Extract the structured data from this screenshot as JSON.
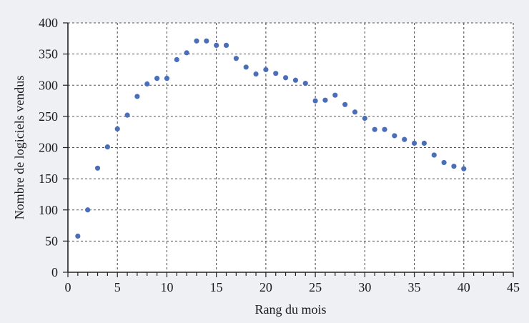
{
  "chart_data": {
    "type": "scatter",
    "title": "",
    "xlabel": "Rang du mois",
    "ylabel": "Nombre de logiciels vendus",
    "xlim": [
      0,
      45
    ],
    "ylim": [
      0,
      400
    ],
    "x_ticks": [
      0,
      5,
      10,
      15,
      20,
      25,
      30,
      35,
      40,
      45
    ],
    "x_tick_labels": [
      "0",
      "5",
      "10",
      "15",
      "20",
      "25",
      "30",
      "35",
      "40",
      "45"
    ],
    "y_ticks": [
      0,
      50,
      100,
      150,
      200,
      250,
      300,
      350,
      400
    ],
    "y_tick_labels": [
      "0",
      "50",
      "100",
      "150",
      "200",
      "250",
      "300",
      "350",
      "400"
    ],
    "x_minor_step": 1,
    "grid": true,
    "grid_style": "dashed",
    "colors": {
      "points": "#4a6fb8",
      "axes": "#222222",
      "grid": "#555555",
      "plot_bg": "#ffffff"
    },
    "x": [
      1,
      2,
      3,
      4,
      5,
      6,
      7,
      8,
      9,
      10,
      11,
      12,
      13,
      14,
      15,
      16,
      17,
      18,
      19,
      20,
      21,
      22,
      23,
      24,
      25,
      26,
      27,
      28,
      29,
      30,
      31,
      32,
      33,
      34,
      35,
      36,
      37,
      38,
      39,
      40
    ],
    "y": [
      58,
      100,
      167,
      201,
      230,
      252,
      282,
      302,
      311,
      311,
      341,
      352,
      371,
      371,
      364,
      364,
      343,
      329,
      318,
      325,
      319,
      312,
      308,
      303,
      275,
      276,
      284,
      269,
      257,
      247,
      229,
      229,
      219,
      213,
      207,
      207,
      188,
      176,
      170,
      166
    ]
  }
}
